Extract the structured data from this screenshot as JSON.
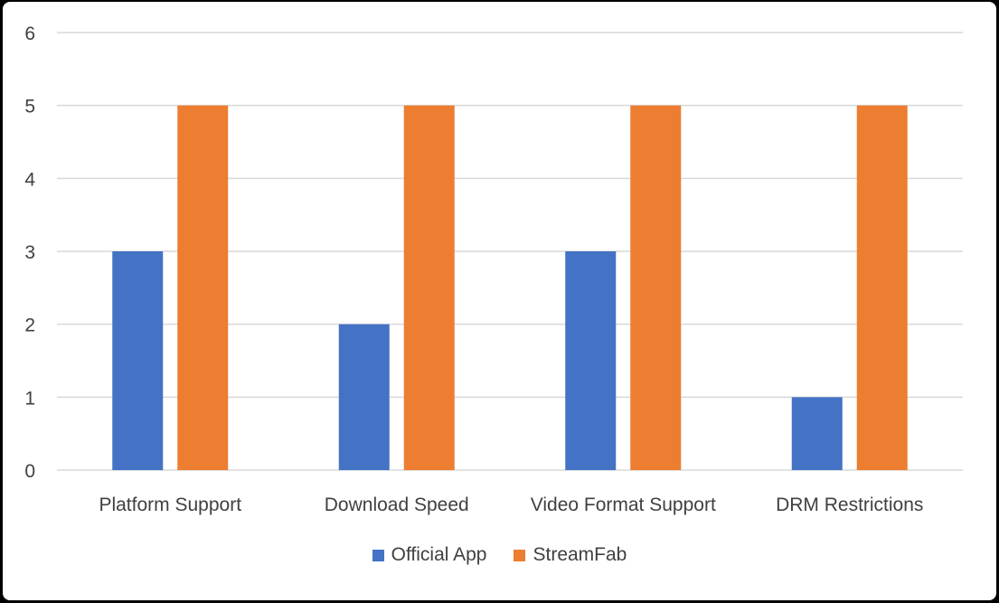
{
  "chart_data": {
    "type": "bar",
    "title": "",
    "xlabel": "",
    "ylabel": "",
    "categories": [
      "Platform Support",
      "Download Speed",
      "Video Format Support",
      "DRM Restrictions"
    ],
    "series": [
      {
        "name": "Official App",
        "color": "#4472c4",
        "values": [
          3,
          2,
          3,
          1
        ]
      },
      {
        "name": "StreamFab",
        "color": "#ed7d31",
        "values": [
          5,
          5,
          5,
          5
        ]
      }
    ],
    "ylim": [
      0,
      6
    ],
    "yticks": [
      "0",
      "1",
      "2",
      "3",
      "4",
      "5",
      "6"
    ],
    "grid": true,
    "legend_position": "bottom"
  }
}
